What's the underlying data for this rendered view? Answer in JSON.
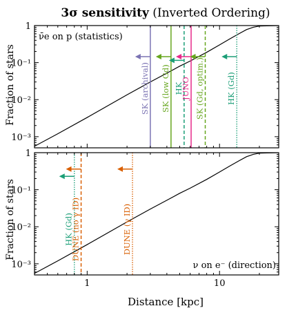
{
  "figure": {
    "title_bold": "3σ sensitivity",
    "title_rest": "(Inverted Ordering)",
    "xlabel": "Distance [kpc]",
    "ylabel": "Fraction of stars"
  },
  "colors": {
    "black": "#000000",
    "sk_archival": "#7b73b3",
    "sk_lowgd": "#66a61e",
    "hk": "#1b9e77",
    "juno": "#e7298a",
    "sk_optim": "#66a61e",
    "dune": "#d95f02"
  },
  "chart_data": [
    {
      "type": "line",
      "panel": "top",
      "annotation": "ν̄e on p (statistics)",
      "xscale": "log",
      "yscale": "log",
      "xlim": [
        0.4,
        28
      ],
      "ylim": [
        0.0005,
        1
      ],
      "x_ticks": [
        {
          "value": 1,
          "label": "1"
        },
        {
          "value": 10,
          "label": "10"
        }
      ],
      "y_ticks": [
        {
          "value": 1,
          "label": "1"
        },
        {
          "value": 0.1,
          "label": "10⁻¹"
        },
        {
          "value": 0.01,
          "label": "10⁻²"
        },
        {
          "value": 0.001,
          "label": "10⁻³"
        }
      ],
      "curve": {
        "x": [
          0.4,
          0.6,
          1,
          2,
          3,
          4,
          5,
          6,
          8,
          10,
          12,
          14,
          16,
          18,
          20,
          28
        ],
        "y": [
          0.00055,
          0.0012,
          0.0033,
          0.0135,
          0.03,
          0.052,
          0.08,
          0.11,
          0.19,
          0.3,
          0.44,
          0.6,
          0.78,
          0.9,
          0.97,
          1.0
        ]
      },
      "thresholds": [
        {
          "label": "SK (archival)",
          "x": 3.0,
          "style": "solid",
          "color": "#7b73b3",
          "arrow_y": 0.145,
          "label_y": 0.02
        },
        {
          "label": "SK (low Gd)",
          "x": 4.3,
          "style": "solid",
          "color": "#66a61e",
          "arrow_y": 0.145,
          "label_y": 0.02
        },
        {
          "label": "HK",
          "x": 5.4,
          "style": "dashed",
          "color": "#1b9e77",
          "arrow_y": 0.115,
          "label_y": 0.02
        },
        {
          "label": "JUNO",
          "x": 6.1,
          "style": "solid",
          "color": "#e7298a",
          "arrow_y": 0.145,
          "label_y": 0.02
        },
        {
          "label": "SK (Gd, optim.)",
          "x": 7.8,
          "style": "dashed",
          "color": "#66a61e",
          "arrow_y": 0.145,
          "label_y": 0.02
        },
        {
          "label": "HK (Gd)",
          "x": 13.5,
          "style": "dotted",
          "color": "#1b9e77",
          "arrow_y": 0.145,
          "label_y": 0.02
        }
      ]
    },
    {
      "type": "line",
      "panel": "bottom",
      "annotation": "ν on e⁻ (direction)",
      "xscale": "log",
      "yscale": "log",
      "xlim": [
        0.4,
        28
      ],
      "ylim": [
        0.0005,
        1
      ],
      "x_ticks": [
        {
          "value": 1,
          "label": "1"
        },
        {
          "value": 10,
          "label": "10"
        }
      ],
      "y_ticks": [
        {
          "value": 1,
          "label": "1"
        },
        {
          "value": 0.1,
          "label": "10⁻¹"
        },
        {
          "value": 0.01,
          "label": "10⁻²"
        },
        {
          "value": 0.001,
          "label": "10⁻³"
        }
      ],
      "curve": {
        "x": [
          0.4,
          0.6,
          1,
          2,
          3,
          4,
          5,
          6,
          8,
          10,
          12,
          14,
          16,
          18,
          20,
          28
        ],
        "y": [
          0.00055,
          0.0012,
          0.0033,
          0.0135,
          0.03,
          0.052,
          0.08,
          0.11,
          0.19,
          0.3,
          0.44,
          0.6,
          0.78,
          0.9,
          0.97,
          1.0
        ]
      },
      "thresholds": [
        {
          "label": "HK (Gd)",
          "x": 0.8,
          "style": "dotted",
          "color": "#1b9e77",
          "arrow_y": 0.23,
          "label_y": 0.0085
        },
        {
          "label": "DUNE (no γ ID)",
          "x": 0.9,
          "style": "dashed",
          "color": "#d95f02",
          "arrow_y": 0.36,
          "label_y": 0.0085
        },
        {
          "label": "DUNE (γ ID)",
          "x": 2.2,
          "style": "dotted",
          "color": "#d95f02",
          "arrow_y": 0.36,
          "label_y": 0.0085
        }
      ]
    }
  ]
}
